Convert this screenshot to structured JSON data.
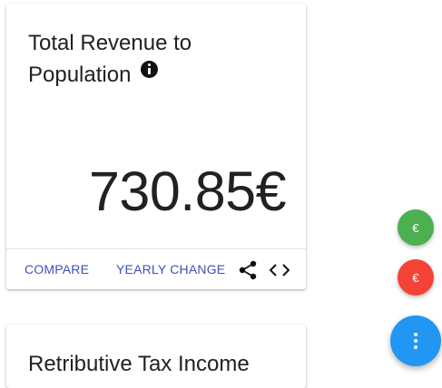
{
  "card1": {
    "title": "Total Revenue to Population",
    "value": "730.85€",
    "actions": {
      "compare_label": "COMPARE",
      "yearly_change_label": "YEARLY CHANGE"
    },
    "icons": [
      "info-icon",
      "share-icon",
      "code-icon"
    ]
  },
  "card2": {
    "title": "Retributive Tax Income"
  },
  "fabs": {
    "green_label": "€",
    "red_label": "€",
    "main_icon": "more-vert-icon"
  },
  "colors": {
    "accent": "#3f51b5",
    "fab_green": "#4caf50",
    "fab_red": "#f44336",
    "fab_main": "#2196f3"
  }
}
